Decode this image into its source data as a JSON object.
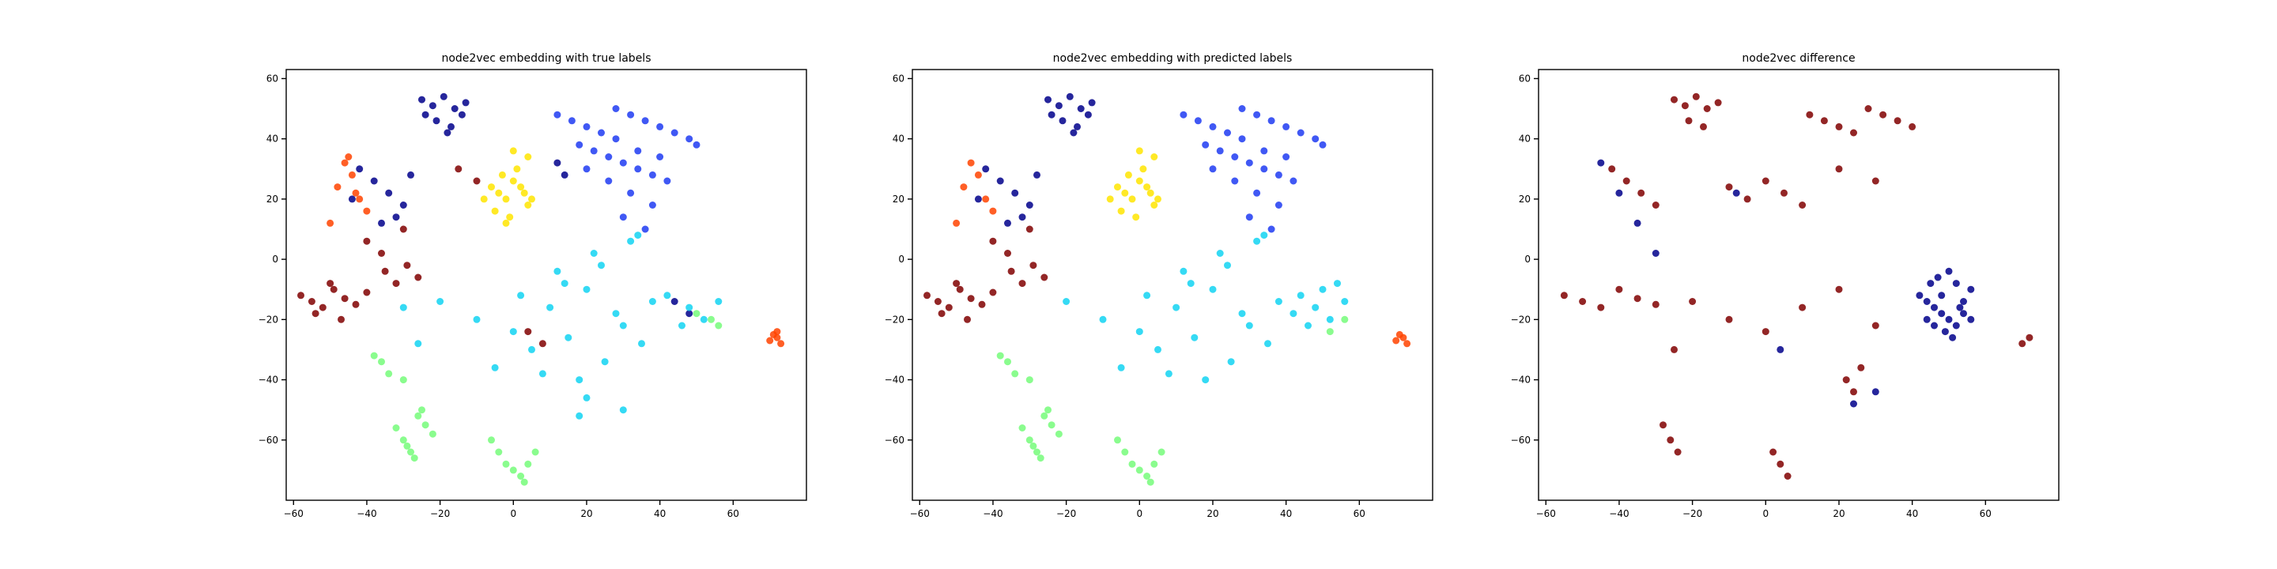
{
  "colors": {
    "c0": "#00008b",
    "c1": "#1f3bf2",
    "c2": "#12d3f2",
    "c3": "#76fb7a",
    "c4": "#ffe500",
    "c5": "#ff4300",
    "c6": "#800000"
  },
  "chart_data": [
    {
      "type": "scatter",
      "title": "node2vec embedding with true labels",
      "xlim": [
        -62,
        80
      ],
      "ylim": [
        -80,
        63
      ],
      "xticks": [
        -60,
        -40,
        -20,
        0,
        20,
        40,
        60
      ],
      "yticks": [
        -60,
        -40,
        -20,
        0,
        20,
        40,
        60
      ],
      "grid": false,
      "series": [
        {
          "color": "c0",
          "x": [
            -25,
            -22,
            -19,
            -16,
            -13,
            -21,
            -17,
            -14,
            -24,
            -18,
            -42,
            -38,
            -34,
            -30,
            -36,
            -28,
            -32,
            -44,
            12,
            14,
            44,
            48
          ],
          "y": [
            53,
            51,
            54,
            50,
            52,
            46,
            44,
            48,
            48,
            42,
            30,
            26,
            22,
            18,
            12,
            28,
            14,
            20,
            32,
            28,
            -14,
            -18
          ]
        },
        {
          "color": "c1",
          "x": [
            12,
            16,
            20,
            24,
            28,
            32,
            36,
            40,
            44,
            48,
            50,
            18,
            22,
            26,
            30,
            34,
            38,
            42,
            20,
            26,
            32,
            38,
            30,
            36,
            28,
            34,
            40
          ],
          "y": [
            48,
            46,
            44,
            42,
            50,
            48,
            46,
            44,
            42,
            40,
            38,
            38,
            36,
            34,
            32,
            30,
            28,
            26,
            30,
            26,
            22,
            18,
            14,
            10,
            40,
            36,
            34
          ]
        },
        {
          "color": "c2",
          "x": [
            -20,
            -10,
            0,
            10,
            20,
            30,
            5,
            15,
            25,
            35,
            -5,
            8,
            18,
            28,
            38,
            12,
            22,
            32,
            2,
            14,
            24,
            34,
            42,
            48,
            52,
            46,
            56,
            -30,
            -26,
            20,
            30,
            18
          ],
          "y": [
            -14,
            -20,
            -24,
            -16,
            -10,
            -22,
            -30,
            -26,
            -34,
            -28,
            -36,
            -38,
            -40,
            -18,
            -14,
            -4,
            2,
            6,
            -12,
            -8,
            -2,
            8,
            -12,
            -16,
            -20,
            -22,
            -14,
            -16,
            -28,
            -46,
            -50,
            -52
          ]
        },
        {
          "color": "c3",
          "x": [
            -32,
            -30,
            -28,
            -26,
            -24,
            -22,
            -27,
            -29,
            -25,
            -6,
            -4,
            -2,
            0,
            2,
            4,
            6,
            3,
            -36,
            -34,
            -38,
            -30,
            50,
            54,
            56
          ],
          "y": [
            -56,
            -60,
            -64,
            -52,
            -55,
            -58,
            -66,
            -62,
            -50,
            -60,
            -64,
            -68,
            -70,
            -72,
            -68,
            -64,
            -74,
            -34,
            -38,
            -32,
            -40,
            -18,
            -20,
            -22
          ]
        },
        {
          "color": "c4",
          "x": [
            -6,
            -4,
            -2,
            0,
            2,
            4,
            -5,
            -1,
            3,
            -3,
            1,
            5,
            -8,
            0,
            4,
            -2
          ],
          "y": [
            24,
            22,
            20,
            26,
            24,
            18,
            16,
            14,
            22,
            28,
            30,
            20,
            20,
            36,
            34,
            12
          ]
        },
        {
          "color": "c5",
          "x": [
            -46,
            -44,
            -48,
            -42,
            -40,
            -50,
            -45,
            -43,
            72,
            73,
            71,
            70,
            72
          ],
          "y": [
            32,
            28,
            24,
            20,
            16,
            12,
            34,
            22,
            -26,
            -28,
            -25,
            -27,
            -24
          ]
        },
        {
          "color": "c6",
          "x": [
            -58,
            -55,
            -52,
            -49,
            -46,
            -43,
            -40,
            -54,
            -50,
            -47,
            -35,
            -32,
            -29,
            -26,
            -40,
            -36,
            -30,
            -15,
            -10,
            4,
            8
          ],
          "y": [
            -12,
            -14,
            -16,
            -10,
            -13,
            -15,
            -11,
            -18,
            -8,
            -20,
            -4,
            -8,
            -2,
            -6,
            6,
            2,
            10,
            30,
            26,
            -24,
            -28
          ]
        }
      ]
    },
    {
      "type": "scatter",
      "title": "node2vec embedding with predicted labels",
      "xlim": [
        -62,
        80
      ],
      "ylim": [
        -80,
        63
      ],
      "xticks": [
        -60,
        -40,
        -20,
        0,
        20,
        40,
        60
      ],
      "yticks": [
        -60,
        -40,
        -20,
        0,
        20,
        40,
        60
      ],
      "grid": false,
      "series": [
        {
          "color": "c0",
          "x": [
            -25,
            -22,
            -19,
            -16,
            -13,
            -21,
            -17,
            -14,
            -24,
            -18,
            -42,
            -38,
            -34,
            -30,
            -36,
            -28,
            -32,
            -44
          ],
          "y": [
            53,
            51,
            54,
            50,
            52,
            46,
            44,
            48,
            48,
            42,
            30,
            26,
            22,
            18,
            12,
            28,
            14,
            20
          ]
        },
        {
          "color": "c1",
          "x": [
            12,
            16,
            20,
            24,
            28,
            32,
            36,
            40,
            44,
            48,
            50,
            18,
            22,
            26,
            30,
            34,
            38,
            42,
            20,
            26,
            32,
            38,
            30,
            36,
            28,
            34,
            40
          ],
          "y": [
            48,
            46,
            44,
            42,
            50,
            48,
            46,
            44,
            42,
            40,
            38,
            38,
            36,
            34,
            32,
            30,
            28,
            26,
            30,
            26,
            22,
            18,
            14,
            10,
            40,
            36,
            34
          ]
        },
        {
          "color": "c2",
          "x": [
            -20,
            -10,
            0,
            10,
            20,
            30,
            5,
            15,
            25,
            35,
            -5,
            8,
            18,
            28,
            38,
            12,
            22,
            32,
            2,
            14,
            24,
            34,
            44,
            48,
            52,
            46,
            56,
            50,
            42,
            54
          ],
          "y": [
            -14,
            -20,
            -24,
            -16,
            -10,
            -22,
            -30,
            -26,
            -34,
            -28,
            -36,
            -38,
            -40,
            -18,
            -14,
            -4,
            2,
            6,
            -12,
            -8,
            -2,
            8,
            -12,
            -16,
            -20,
            -22,
            -14,
            -10,
            -18,
            -8
          ]
        },
        {
          "color": "c3",
          "x": [
            -32,
            -30,
            -28,
            -26,
            -24,
            -22,
            -27,
            -29,
            -25,
            -6,
            -4,
            -2,
            0,
            2,
            4,
            6,
            3,
            -36,
            -34,
            -38,
            -30,
            52,
            56
          ],
          "y": [
            -56,
            -60,
            -64,
            -52,
            -55,
            -58,
            -66,
            -62,
            -50,
            -60,
            -64,
            -68,
            -70,
            -72,
            -68,
            -64,
            -74,
            -34,
            -38,
            -32,
            -40,
            -24,
            -20
          ]
        },
        {
          "color": "c4",
          "x": [
            -6,
            -4,
            -2,
            0,
            2,
            4,
            -5,
            -1,
            3,
            -3,
            1,
            5,
            -8,
            0,
            4
          ],
          "y": [
            24,
            22,
            20,
            26,
            24,
            18,
            16,
            14,
            22,
            28,
            30,
            20,
            20,
            36,
            34
          ]
        },
        {
          "color": "c5",
          "x": [
            -46,
            -44,
            -48,
            -42,
            -40,
            -50,
            72,
            73,
            71,
            70
          ],
          "y": [
            32,
            28,
            24,
            20,
            16,
            12,
            -26,
            -28,
            -25,
            -27
          ]
        },
        {
          "color": "c6",
          "x": [
            -58,
            -55,
            -52,
            -49,
            -46,
            -43,
            -40,
            -54,
            -50,
            -47,
            -35,
            -32,
            -29,
            -26,
            -40,
            -36,
            -30
          ],
          "y": [
            -12,
            -14,
            -16,
            -10,
            -13,
            -15,
            -11,
            -18,
            -8,
            -20,
            -4,
            -8,
            -2,
            -6,
            6,
            2,
            10
          ]
        }
      ]
    },
    {
      "type": "scatter",
      "title": "node2vec difference",
      "xlim": [
        -62,
        80
      ],
      "ylim": [
        -80,
        63
      ],
      "xticks": [
        -60,
        -40,
        -20,
        0,
        20,
        40,
        60
      ],
      "yticks": [
        -60,
        -40,
        -20,
        0,
        20,
        40,
        60
      ],
      "grid": false,
      "series": [
        {
          "color": "c6",
          "x": [
            -25,
            -22,
            -19,
            -16,
            -13,
            -21,
            -17,
            12,
            16,
            20,
            24,
            28,
            32,
            36,
            40,
            -42,
            -38,
            -34,
            -30,
            -10,
            -5,
            0,
            5,
            10,
            20,
            30,
            -20,
            -10,
            0,
            10,
            20,
            30,
            -55,
            -50,
            -45,
            -40,
            -35,
            -30,
            -25,
            -28,
            -26,
            -24,
            2,
            4,
            6,
            72,
            70,
            22,
            26,
            24
          ],
          "y": [
            53,
            51,
            54,
            50,
            52,
            46,
            44,
            48,
            46,
            44,
            42,
            50,
            48,
            46,
            44,
            30,
            26,
            22,
            18,
            24,
            20,
            26,
            22,
            18,
            30,
            26,
            -14,
            -20,
            -24,
            -16,
            -10,
            -22,
            -12,
            -14,
            -16,
            -10,
            -13,
            -15,
            -30,
            -55,
            -60,
            -64,
            -64,
            -68,
            -72,
            -26,
            -28,
            -40,
            -36,
            -44
          ]
        },
        {
          "color": "c0",
          "x": [
            42,
            44,
            46,
            48,
            50,
            52,
            54,
            56,
            45,
            47,
            49,
            51,
            53,
            44,
            48,
            52,
            56,
            46,
            50,
            54,
            -45,
            -40,
            -35,
            -30,
            -8,
            4,
            24,
            30
          ],
          "y": [
            -12,
            -14,
            -16,
            -18,
            -20,
            -22,
            -14,
            -10,
            -8,
            -6,
            -24,
            -26,
            -16,
            -20,
            -12,
            -8,
            -20,
            -22,
            -4,
            -18,
            32,
            22,
            12,
            2,
            22,
            -30,
            -48,
            -44
          ]
        }
      ]
    }
  ]
}
